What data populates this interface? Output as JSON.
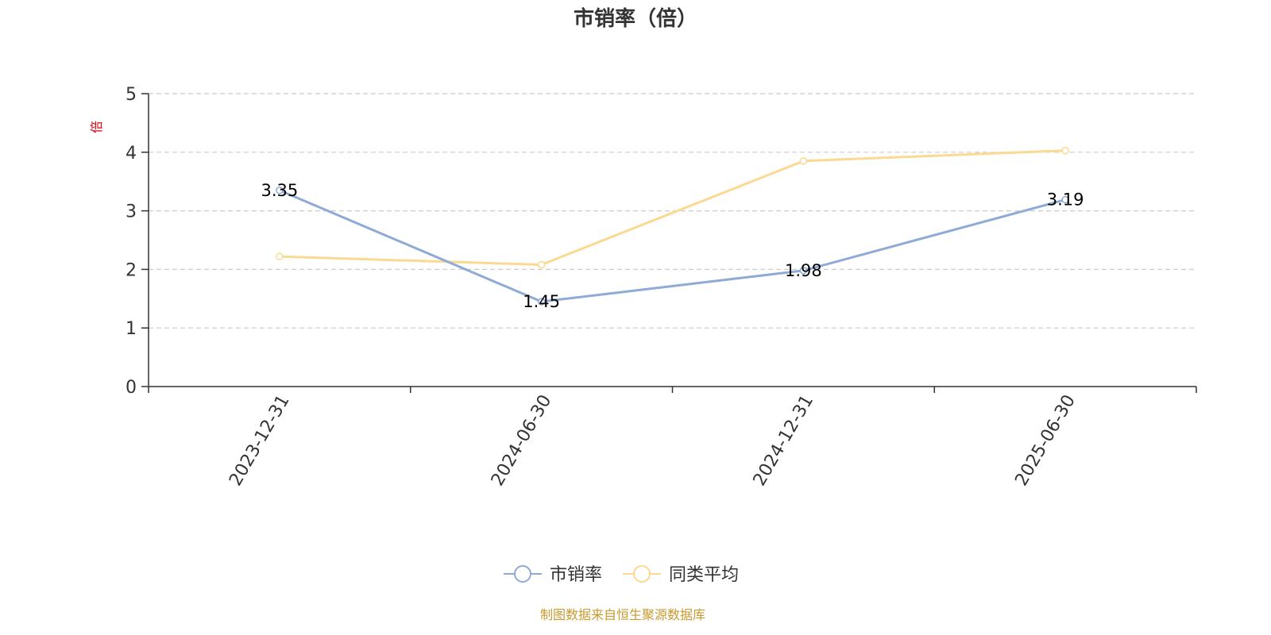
{
  "chart_data": {
    "type": "line",
    "title": "市销率（倍）",
    "ylabel": "倍",
    "ylim": [
      0,
      5
    ],
    "yticks": [
      0,
      1,
      2,
      3,
      4,
      5
    ],
    "x": [
      "2023-12-31",
      "2024-06-30",
      "2024-12-31",
      "2025-06-30"
    ],
    "series": [
      {
        "name": "市销率",
        "color": "#8eaad6",
        "values": [
          3.35,
          1.45,
          1.98,
          3.19
        ],
        "labels": [
          "3.35",
          "1.45",
          "1.98",
          "3.19"
        ]
      },
      {
        "name": "同类平均",
        "color": "#fbd993",
        "values": [
          2.22,
          2.08,
          3.85,
          4.03
        ]
      }
    ],
    "grid": true,
    "legend_position": "bottom-center",
    "source": "制图数据来自恒生聚源数据库"
  }
}
